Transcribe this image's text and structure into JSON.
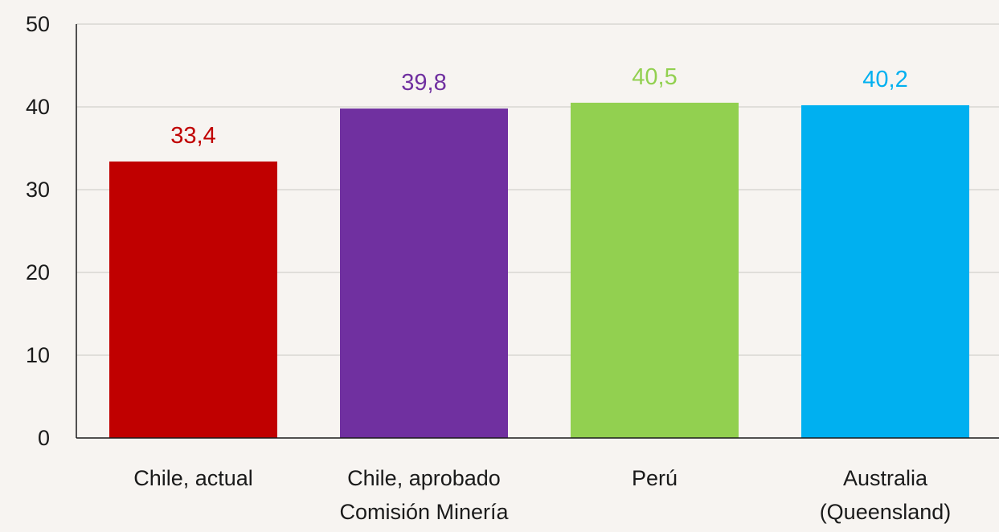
{
  "chart_data": {
    "type": "bar",
    "categories": [
      [
        "Chile, actual"
      ],
      [
        "Chile, aprobado",
        "Comisión Minería"
      ],
      [
        "Perú"
      ],
      [
        "Australia",
        "(Queensland)"
      ]
    ],
    "values": [
      33.4,
      39.8,
      40.5,
      40.2
    ],
    "value_labels": [
      "33,4",
      "39,8",
      "40,5",
      "40,2"
    ],
    "colors": [
      "#c00000",
      "#7030a0",
      "#92d050",
      "#00b0f0"
    ],
    "ylim": [
      0,
      50
    ],
    "yticks": [
      0,
      10,
      20,
      30,
      40,
      50
    ],
    "ytick_labels": [
      "0",
      "10",
      "20",
      "30",
      "40",
      "50"
    ],
    "grid": true,
    "title": "",
    "xlabel": "",
    "ylabel": ""
  }
}
